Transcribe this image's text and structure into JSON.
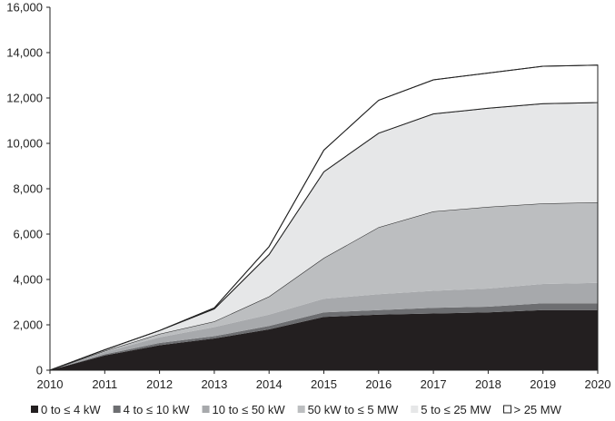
{
  "chart_data": {
    "type": "area",
    "stacked": true,
    "x": [
      2010,
      2011,
      2012,
      2013,
      2014,
      2015,
      2016,
      2017,
      2018,
      2019,
      2020
    ],
    "ylim": [
      0,
      16000
    ],
    "yticks": [
      "0",
      "2,000",
      "4,000",
      "6,000",
      "8,000",
      "10,000",
      "12,000",
      "14,000",
      "16,000"
    ],
    "xticks": [
      "2010",
      "2011",
      "2012",
      "2013",
      "2014",
      "2015",
      "2016",
      "2017",
      "2018",
      "2019",
      "2020"
    ],
    "grid": false,
    "legend_position": "bottom",
    "series": [
      {
        "name": "0 to ≤ 4 kW",
        "color": "#231f20",
        "values": [
          0,
          650,
          1100,
          1400,
          1800,
          2350,
          2450,
          2500,
          2550,
          2650,
          2650
        ]
      },
      {
        "name": "4 to ≤ 10 kW",
        "color": "#6d6e71",
        "values": [
          0,
          50,
          100,
          100,
          150,
          200,
          200,
          250,
          250,
          300,
          300
        ]
      },
      {
        "name": "10 to ≤ 50 kW",
        "color": "#a7a9ac",
        "values": [
          0,
          100,
          250,
          400,
          500,
          600,
          700,
          750,
          800,
          850,
          900
        ]
      },
      {
        "name": "50 kW to ≤ 5 MW",
        "color": "#bcbec0",
        "values": [
          0,
          50,
          150,
          250,
          800,
          1800,
          2950,
          3500,
          3600,
          3550,
          3550
        ]
      },
      {
        "name": "5 to ≤ 25 MW",
        "color": "#e6e7e8",
        "values": [
          0,
          50,
          150,
          550,
          1850,
          3800,
          4150,
          4300,
          4350,
          4400,
          4400
        ]
      },
      {
        "name": "> 25 MW",
        "color": "#ffffff",
        "values": [
          0,
          0,
          0,
          50,
          350,
          950,
          1450,
          1500,
          1550,
          1650,
          1650
        ]
      }
    ]
  }
}
